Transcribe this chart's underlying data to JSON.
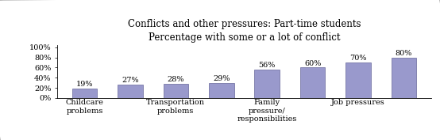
{
  "title_line1": "Conflicts and other pressures: Part-time students",
  "title_line2": "Percentage with some or a lot of conflict",
  "x_labels": [
    "Childcare\nproblems",
    "",
    "Transportation\nproblems",
    "",
    "Family\npressure/\nresponsibilities",
    "",
    "Job pressures",
    ""
  ],
  "values": [
    19,
    27,
    28,
    29,
    56,
    60,
    70,
    80
  ],
  "bar_color": "#9999cc",
  "bar_edge_color": "#666699",
  "ylim": [
    0,
    100
  ],
  "yticks": [
    0,
    20,
    40,
    60,
    80,
    100
  ],
  "ytick_labels": [
    "0%",
    "20%",
    "40%",
    "60%",
    "80%",
    "100%"
  ],
  "background_color": "#ffffff",
  "title_fontsize": 8.5,
  "label_fontsize": 7,
  "value_fontsize": 7,
  "bar_width": 0.55
}
